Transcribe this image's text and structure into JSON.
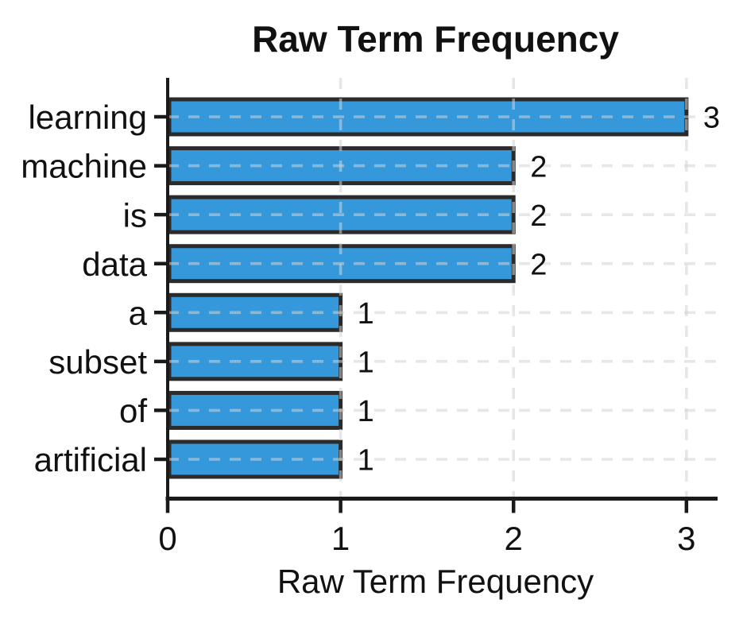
{
  "chart_data": {
    "type": "bar",
    "orientation": "horizontal",
    "title": "Raw Term Frequency",
    "xlabel": "Raw Term Frequency",
    "ylabel": "",
    "categories": [
      "learning",
      "machine",
      "is",
      "data",
      "a",
      "subset",
      "of",
      "artificial"
    ],
    "values": [
      3,
      2,
      2,
      2,
      1,
      1,
      1,
      1
    ],
    "bar_value_labels": [
      "3",
      "2",
      "2",
      "2",
      "1",
      "1",
      "1",
      "1"
    ],
    "x_ticks": [
      0,
      1,
      2,
      3
    ],
    "x_tick_labels": [
      "0",
      "1",
      "2",
      "3"
    ],
    "xlim": [
      0,
      3.18
    ],
    "grid": {
      "shown": true,
      "style": "dashed",
      "axes": "both",
      "drawn_over_bars": true
    },
    "legend": null,
    "colors": {
      "bar_fill": "#3498db",
      "bar_edge": "#2b2b2b",
      "grid_line": "#d4d4d4",
      "axis_line": "#1a1a1a",
      "text": "#111111",
      "background": "#ffffff"
    }
  }
}
